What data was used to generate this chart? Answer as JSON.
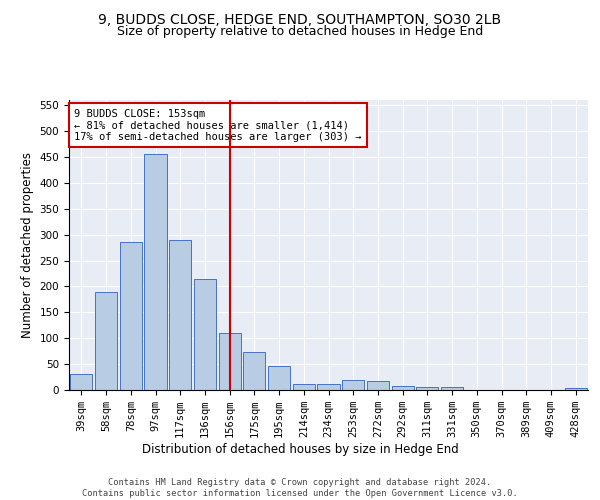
{
  "title": "9, BUDDS CLOSE, HEDGE END, SOUTHAMPTON, SO30 2LB",
  "subtitle": "Size of property relative to detached houses in Hedge End",
  "xlabel": "Distribution of detached houses by size in Hedge End",
  "ylabel": "Number of detached properties",
  "categories": [
    "39sqm",
    "58sqm",
    "78sqm",
    "97sqm",
    "117sqm",
    "136sqm",
    "156sqm",
    "175sqm",
    "195sqm",
    "214sqm",
    "234sqm",
    "253sqm",
    "272sqm",
    "292sqm",
    "311sqm",
    "331sqm",
    "350sqm",
    "370sqm",
    "389sqm",
    "409sqm",
    "428sqm"
  ],
  "values": [
    30,
    190,
    285,
    455,
    290,
    215,
    110,
    74,
    47,
    12,
    12,
    20,
    17,
    8,
    5,
    5,
    0,
    0,
    0,
    0,
    4
  ],
  "bar_color": "#b8cce4",
  "bar_edge_color": "#4472c4",
  "vline_x_index": 6,
  "vline_color": "#cc0000",
  "annotation_text": "9 BUDDS CLOSE: 153sqm\n← 81% of detached houses are smaller (1,414)\n17% of semi-detached houses are larger (303) →",
  "annotation_box_color": "#ffffff",
  "annotation_box_edge_color": "#cc0000",
  "ylim": [
    0,
    560
  ],
  "yticks": [
    0,
    50,
    100,
    150,
    200,
    250,
    300,
    350,
    400,
    450,
    500,
    550
  ],
  "background_color": "#e8edf5",
  "footer_text": "Contains HM Land Registry data © Crown copyright and database right 2024.\nContains public sector information licensed under the Open Government Licence v3.0.",
  "title_fontsize": 10,
  "subtitle_fontsize": 9,
  "xlabel_fontsize": 8.5,
  "ylabel_fontsize": 8.5,
  "tick_fontsize": 7.5,
  "annotation_fontsize": 7.5,
  "footer_fontsize": 6.2
}
